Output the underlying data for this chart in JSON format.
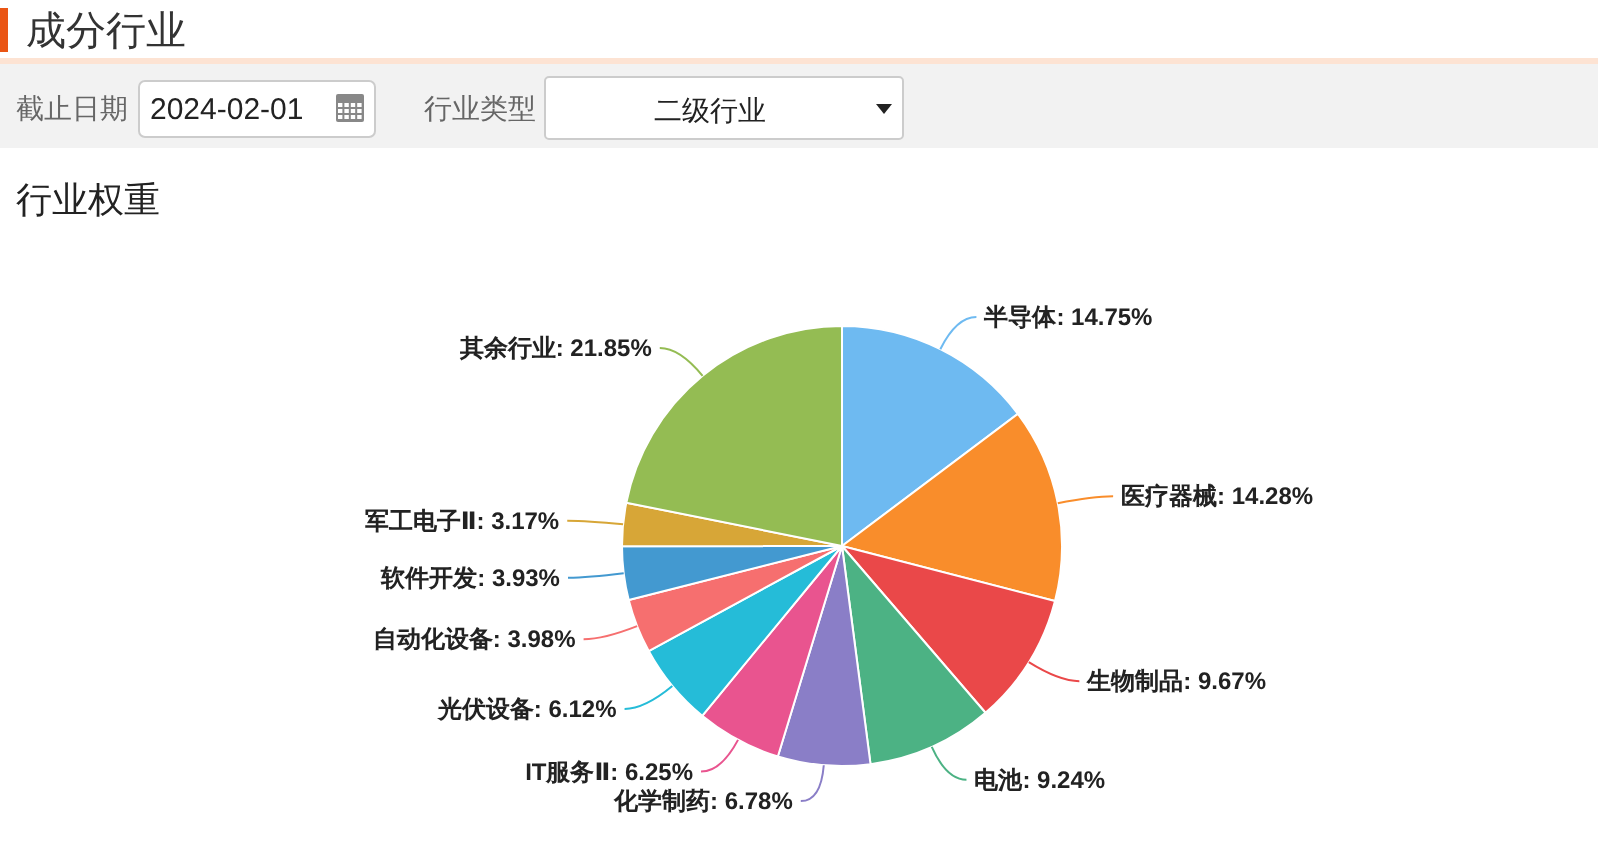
{
  "chart_data": {
    "type": "pie",
    "title": "成分行业",
    "subtitle": "行业权重",
    "annotations": [
      "截止日期",
      "2024-02-01",
      "行业类型",
      "二级行业"
    ],
    "categories": [
      "半导体",
      "医疗器械",
      "生物制品",
      "电池",
      "化学制药",
      "IT服务Ⅱ",
      "光伏设备",
      "自动化设备",
      "软件开发",
      "军工电子Ⅱ",
      "其余行业"
    ],
    "values": [
      14.75,
      14.28,
      9.67,
      9.24,
      6.78,
      6.25,
      6.12,
      3.98,
      3.93,
      3.17,
      21.85
    ],
    "colors": [
      "#6ebaf1",
      "#f98d2b",
      "#ea4849",
      "#4cb284",
      "#8a7ec7",
      "#e9548f",
      "#25bcd8",
      "#f66f6f",
      "#4399d0",
      "#d7a637",
      "#94bc53"
    ],
    "value_labels": [
      "14.75%",
      "14.28%",
      "9.67%",
      "9.24%",
      "6.78%",
      "6.25%",
      "6.12%",
      "3.98%",
      "3.93%",
      "3.17%",
      "21.85%"
    ]
  }
}
